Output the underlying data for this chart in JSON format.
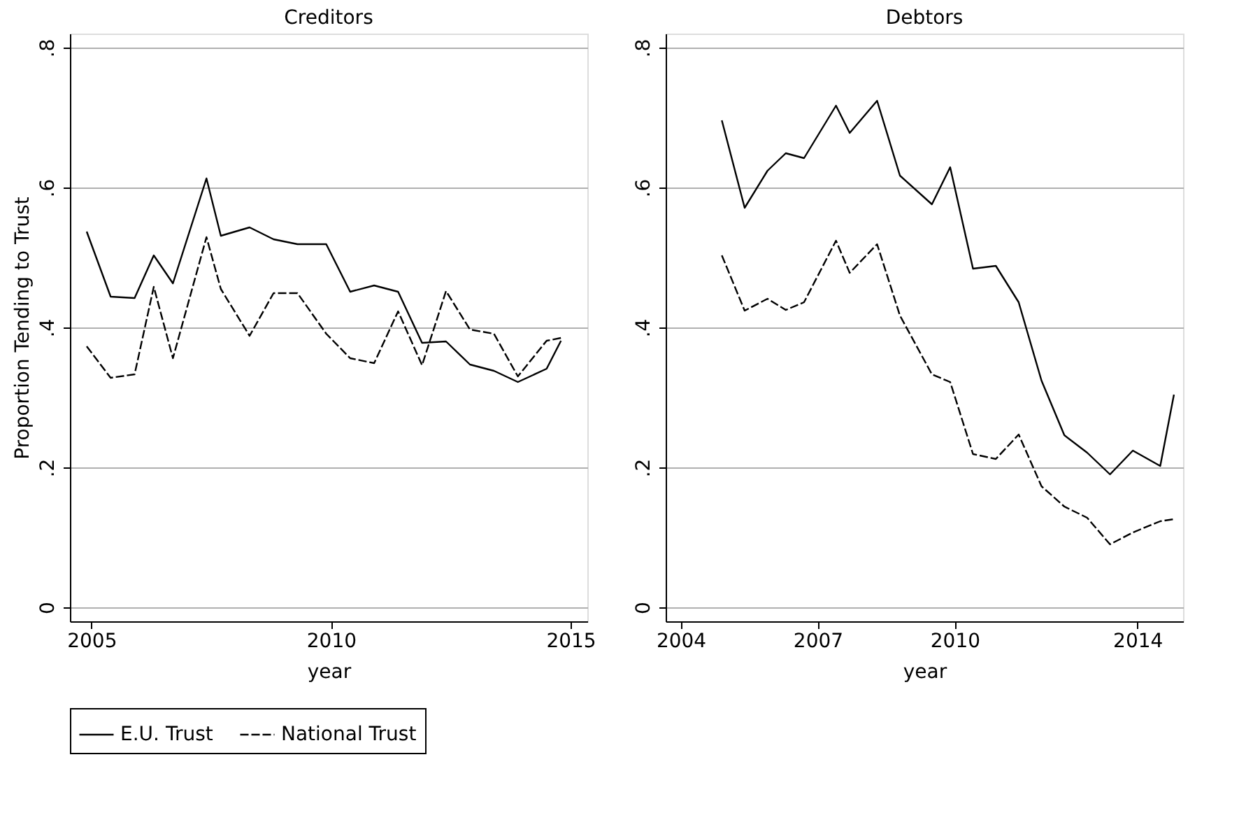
{
  "chart_data": [
    {
      "type": "line",
      "title": "Creditors",
      "xlabel": "year",
      "ylabel": "Proportion Tending to Trust",
      "xlim": [
        2004.55,
        2015.35
      ],
      "xticks": [
        2005,
        2010,
        2015
      ],
      "ylim": [
        -0.02,
        0.82
      ],
      "yticks": [
        0,
        {
          "value": 0.2,
          "label": ".2"
        },
        {
          "value": 0.4,
          "label": ".4"
        },
        {
          "value": 0.6,
          "label": ".6"
        },
        {
          "value": 0.8,
          "label": ".8"
        }
      ],
      "grid": "y",
      "legend": "bottom",
      "x": [
        2004.9,
        2005.4,
        2005.9,
        2006.3,
        2006.7,
        2007.4,
        2007.7,
        2008.3,
        2008.8,
        2009.3,
        2009.9,
        2010.4,
        2010.9,
        2011.4,
        2011.9,
        2012.4,
        2012.9,
        2013.4,
        2013.9,
        2014.5,
        2014.8
      ],
      "series": [
        {
          "name": "E.U. Trust",
          "color": "#000000",
          "line_style": "solid",
          "values": [
            0.537,
            0.444,
            0.442,
            0.503,
            0.463,
            0.613,
            0.531,
            0.543,
            0.526,
            0.519,
            0.519,
            0.451,
            0.46,
            0.451,
            0.378,
            0.38,
            0.347,
            0.338,
            0.322,
            0.341,
            0.381
          ]
        },
        {
          "name": "National Trust",
          "color": "#000000",
          "line_style": "dashed",
          "values": [
            0.373,
            0.328,
            0.333,
            0.458,
            0.356,
            0.529,
            0.455,
            0.388,
            0.449,
            0.449,
            0.391,
            0.356,
            0.349,
            0.423,
            0.346,
            0.452,
            0.397,
            0.391,
            0.33,
            0.381,
            0.385
          ]
        }
      ]
    },
    {
      "type": "line",
      "title": "Debtors",
      "xlabel": "year",
      "xlim": [
        2003.67,
        2015.0
      ],
      "xticks": [
        2004,
        2007,
        2010,
        2014
      ],
      "ylim": [
        -0.02,
        0.82
      ],
      "yticks": [
        0,
        {
          "value": 0.2,
          "label": ".2"
        },
        {
          "value": 0.4,
          "label": ".4"
        },
        {
          "value": 0.6,
          "label": ".6"
        },
        {
          "value": 0.8,
          "label": ".8"
        }
      ],
      "grid": "y",
      "legend": "bottom",
      "x": [
        2004.9,
        2005.4,
        2005.9,
        2006.3,
        2006.7,
        2007.4,
        2007.7,
        2008.3,
        2008.8,
        2009.5,
        2009.9,
        2010.4,
        2010.9,
        2011.4,
        2011.9,
        2012.4,
        2012.9,
        2013.4,
        2013.9,
        2014.5,
        2014.8
      ],
      "series": [
        {
          "name": "E.U. Trust",
          "color": "#000000",
          "line_style": "solid",
          "values": [
            0.696,
            0.571,
            0.624,
            0.649,
            0.642,
            0.717,
            0.678,
            0.724,
            0.617,
            0.576,
            0.629,
            0.484,
            0.488,
            0.436,
            0.324,
            0.246,
            0.221,
            0.19,
            0.224,
            0.202,
            0.304
          ]
        },
        {
          "name": "National Trust",
          "color": "#000000",
          "line_style": "dashed",
          "values": [
            0.503,
            0.424,
            0.441,
            0.425,
            0.436,
            0.524,
            0.478,
            0.519,
            0.417,
            0.333,
            0.322,
            0.219,
            0.212,
            0.247,
            0.173,
            0.144,
            0.128,
            0.09,
            0.107,
            0.123,
            0.126
          ]
        }
      ]
    }
  ]
}
